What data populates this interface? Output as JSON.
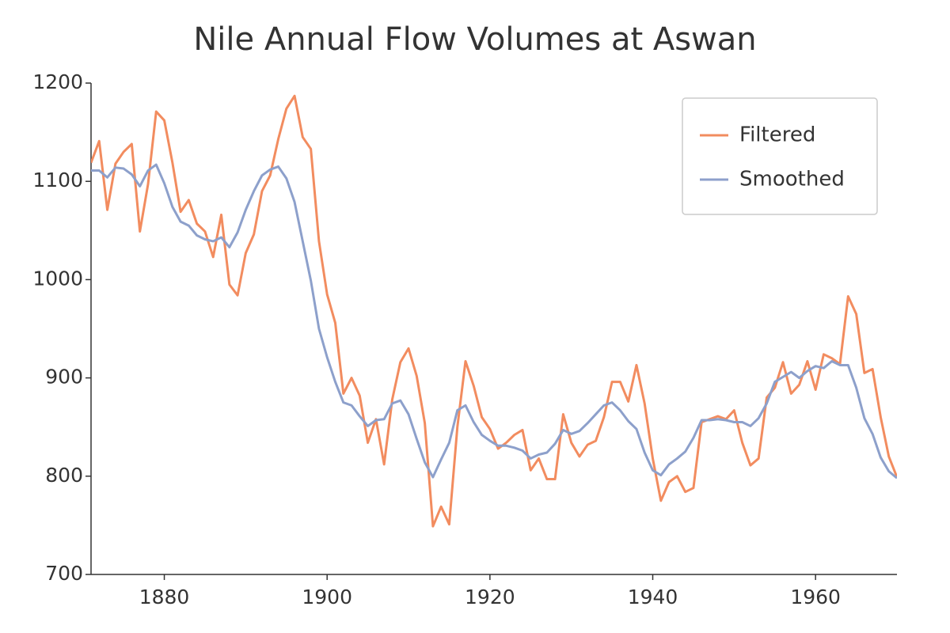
{
  "chart_data": {
    "type": "line",
    "title": "Nile Annual Flow Volumes at Aswan",
    "x": [
      1871,
      1872,
      1873,
      1874,
      1875,
      1876,
      1877,
      1878,
      1879,
      1880,
      1881,
      1882,
      1883,
      1884,
      1885,
      1886,
      1887,
      1888,
      1889,
      1890,
      1891,
      1892,
      1893,
      1894,
      1895,
      1896,
      1897,
      1898,
      1899,
      1900,
      1901,
      1902,
      1903,
      1904,
      1905,
      1906,
      1907,
      1908,
      1909,
      1910,
      1911,
      1912,
      1913,
      1914,
      1915,
      1916,
      1917,
      1918,
      1919,
      1920,
      1921,
      1922,
      1923,
      1924,
      1925,
      1926,
      1927,
      1928,
      1929,
      1930,
      1931,
      1932,
      1933,
      1934,
      1935,
      1936,
      1937,
      1938,
      1939,
      1940,
      1941,
      1942,
      1943,
      1944,
      1945,
      1946,
      1947,
      1948,
      1949,
      1950,
      1951,
      1952,
      1953,
      1954,
      1955,
      1956,
      1957,
      1958,
      1959,
      1960,
      1961,
      1962,
      1963,
      1964,
      1965,
      1966,
      1967,
      1968,
      1969,
      1970
    ],
    "series": [
      {
        "name": "Filtered",
        "color": "#f28c5f",
        "values": [
          1119,
          1141,
          1071,
          1118,
          1130,
          1138,
          1049,
          1097,
          1171,
          1162,
          1119,
          1069,
          1081,
          1057,
          1049,
          1023,
          1066,
          995,
          984,
          1027,
          1046,
          1090,
          1106,
          1143,
          1174,
          1187,
          1145,
          1133,
          1039,
          985,
          956,
          884,
          900,
          882,
          834,
          858,
          812,
          878,
          916,
          930,
          902,
          854,
          749,
          769,
          751,
          850,
          917,
          892,
          860,
          848,
          828,
          834,
          842,
          847,
          806,
          818,
          797,
          797,
          863,
          834,
          820,
          832,
          836,
          860,
          896,
          896,
          876,
          913,
          874,
          818,
          775,
          794,
          800,
          784,
          788,
          855,
          858,
          861,
          858,
          867,
          834,
          811,
          818,
          880,
          890,
          916,
          884,
          893,
          917,
          888,
          924,
          920,
          914,
          983,
          965,
          905,
          909,
          860,
          820,
          799
        ]
      },
      {
        "name": "Smoothed",
        "color": "#8da0cb",
        "values": [
          1111,
          1111,
          1104,
          1114,
          1113,
          1107,
          1095,
          1111,
          1117,
          1098,
          1074,
          1059,
          1055,
          1045,
          1041,
          1039,
          1043,
          1033,
          1048,
          1071,
          1090,
          1106,
          1112,
          1115,
          1103,
          1079,
          1039,
          999,
          950,
          921,
          896,
          875,
          872,
          861,
          851,
          857,
          858,
          874,
          877,
          863,
          838,
          814,
          799,
          817,
          834,
          867,
          872,
          855,
          842,
          836,
          831,
          831,
          829,
          826,
          818,
          822,
          824,
          833,
          847,
          843,
          846,
          854,
          863,
          872,
          875,
          867,
          856,
          848,
          824,
          806,
          801,
          812,
          818,
          825,
          839,
          857,
          857,
          858,
          857,
          855,
          855,
          851,
          859,
          874,
          896,
          901,
          906,
          900,
          907,
          912,
          910,
          917,
          913,
          913,
          890,
          859,
          843,
          819,
          805,
          798
        ]
      }
    ],
    "xlim": [
      1871,
      1970
    ],
    "ylim": [
      700,
      1200
    ],
    "xticks": [
      1880,
      1900,
      1920,
      1940,
      1960
    ],
    "yticks": [
      700,
      800,
      900,
      1000,
      1100,
      1200
    ],
    "grid": false,
    "legend": "upper right"
  }
}
